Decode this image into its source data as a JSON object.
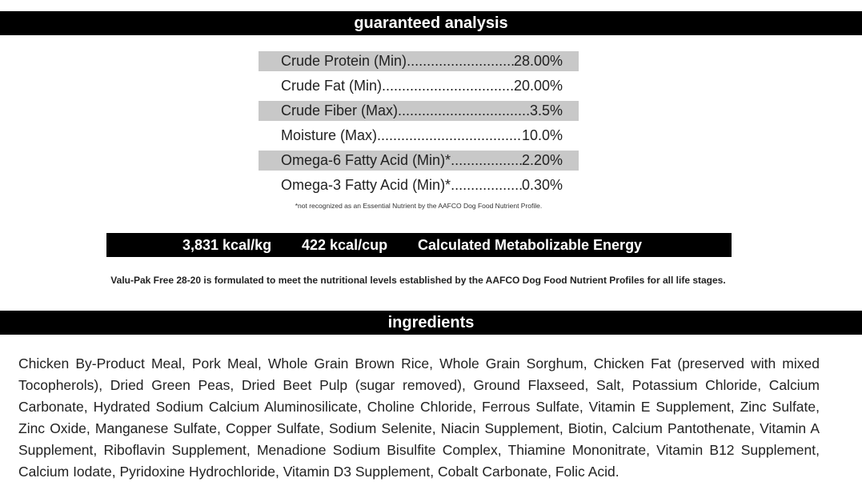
{
  "guaranteed_analysis": {
    "title": "guaranteed analysis",
    "rows": [
      {
        "label": "Crude Protein (Min)",
        "value": "28.00%",
        "shaded": true
      },
      {
        "label": "Crude Fat (Min)",
        "value": "20.00%",
        "shaded": false
      },
      {
        "label": "Crude Fiber (Max)",
        "value": "3.5%",
        "shaded": true
      },
      {
        "label": "Moisture (Max)",
        "value": "10.0%",
        "shaded": false
      },
      {
        "label": "Omega-6 Fatty Acid (Min)*",
        "value": "2.20%",
        "shaded": true
      },
      {
        "label": "Omega-3 Fatty Acid (Min)*",
        "value": "0.30%",
        "shaded": false
      }
    ],
    "footnote": "*not recognized as an Essential Nutrient by the AAFCO Dog Food Nutrient Profile."
  },
  "energy": {
    "kcal_per_kg": "3,831 kcal/kg",
    "kcal_per_cup": "422 kcal/cup",
    "label": "Calculated Metabolizable Energy"
  },
  "formulated_statement": "Valu-Pak Free 28-20  is formulated to meet the nutritional levels established by the AAFCO Dog Food Nutrient Profiles for all life stages.",
  "ingredients": {
    "title": "ingredients",
    "text": "Chicken By-Product Meal, Pork Meal, Whole Grain Brown Rice, Whole Grain Sorghum, Chicken Fat (preserved with mixed Tocopherols), Dried Green Peas, Dried Beet Pulp (sugar removed), Ground Flaxseed, Salt, Potassium Chloride, Calcium Carbonate, Hydrated Sodium Calcium Aluminosilicate, Choline Chloride, Ferrous Sulfate, Vitamin E Supplement, Zinc Sulfate, Zinc Oxide, Manganese Sulfate, Copper Sulfate, Sodium Selenite, Niacin Supplement, Biotin, Calcium Pantothenate, Vitamin A Supplement, Riboflavin Supplement, Menadione Sodium Bisulfite Complex, Thiamine Mononitrate, Vitamin B12 Supplement, Calcium Iodate, Pyridoxine Hydrochloride, Vitamin D3 Supplement, Cobalt Carbonate, Folic Acid."
  }
}
